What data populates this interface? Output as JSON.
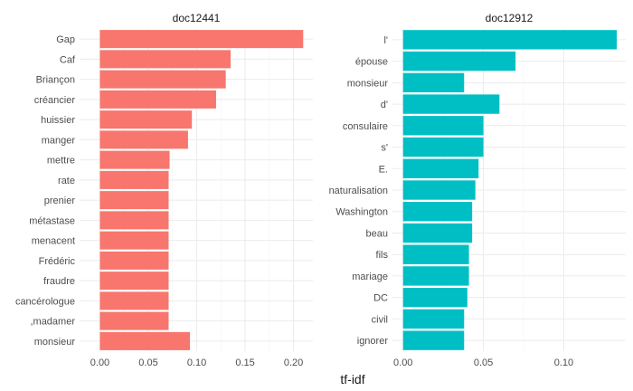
{
  "chart_data": {
    "type": "bar",
    "orientation": "horizontal",
    "xlabel": "tf-idf",
    "ylabel": "",
    "grid": true,
    "legend": "none",
    "facets": [
      {
        "title": "doc12441",
        "color": "#F8766D",
        "xlim": [
          -0.021,
          0.22
        ],
        "ticks": [
          0.0,
          0.05,
          0.1,
          0.15,
          0.2
        ],
        "tick_labels": [
          "0.00",
          "0.05",
          "0.10",
          "0.15",
          "0.20"
        ],
        "categories": [
          "Gap",
          "Caf",
          "Briançon",
          "créancier",
          "huissier",
          "manger",
          "mettre",
          "rate",
          "prenier",
          "métastase",
          "menacent",
          "Frédéric",
          "fraudre",
          "cancérologue",
          ",madamer",
          "monsieur"
        ],
        "values": [
          0.21,
          0.135,
          0.13,
          0.12,
          0.095,
          0.091,
          0.072,
          0.071,
          0.071,
          0.071,
          0.071,
          0.071,
          0.071,
          0.071,
          0.071,
          0.093
        ]
      },
      {
        "title": "doc12912",
        "color": "#00BFC4",
        "xlim": [
          -0.0066,
          0.1386
        ],
        "ticks": [
          0.0,
          0.05,
          0.1
        ],
        "tick_labels": [
          "0.00",
          "0.05",
          "0.10"
        ],
        "categories": [
          "l'",
          "épouse",
          "monsieur",
          "d'",
          "consulaire",
          "s'",
          "E.",
          "naturalisation",
          "Washington",
          "beau",
          "fils",
          "mariage",
          "DC",
          "civil",
          "ignorer"
        ],
        "values": [
          0.133,
          0.07,
          0.038,
          0.06,
          0.05,
          0.05,
          0.047,
          0.045,
          0.043,
          0.043,
          0.041,
          0.041,
          0.04,
          0.038,
          0.038
        ]
      }
    ]
  }
}
